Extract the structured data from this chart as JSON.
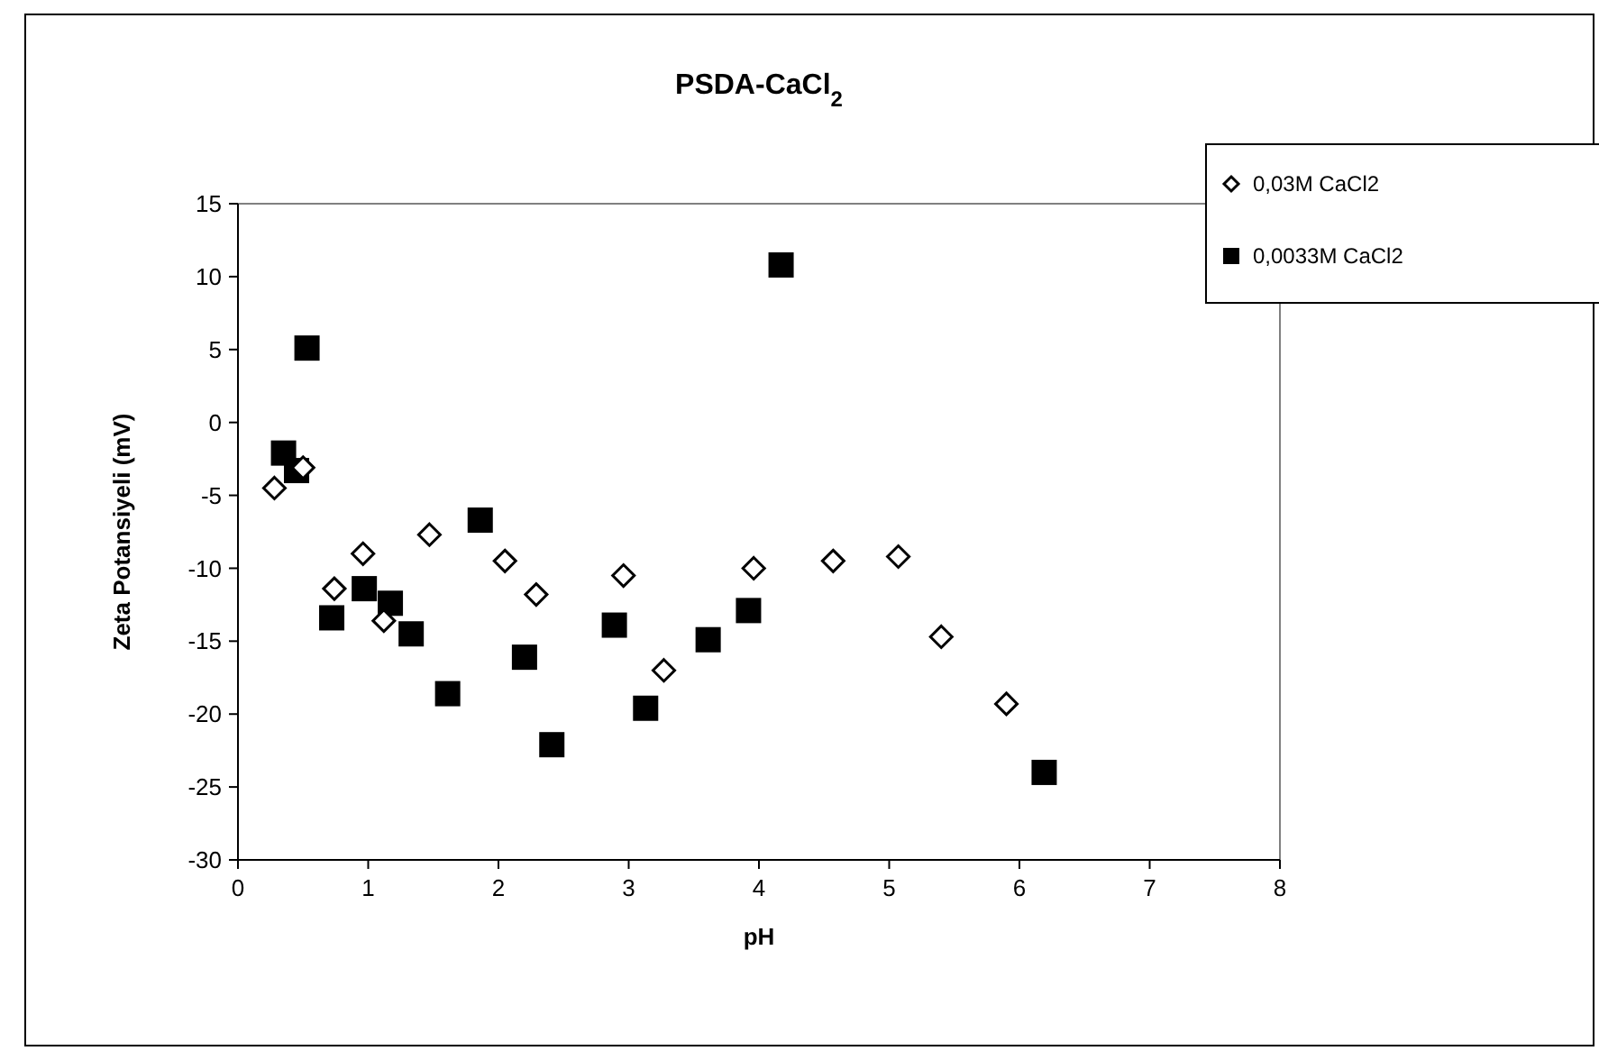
{
  "chart_data": {
    "type": "scatter",
    "title": "PSDA-CaCl$_{2}$",
    "xlabel": "pH",
    "ylabel": "Zeta Potansiyeli (mV)",
    "xlim": [
      0,
      8
    ],
    "xticks": [
      0,
      1,
      2,
      3,
      4,
      5,
      6,
      7,
      8
    ],
    "ylim": [
      -30,
      15
    ],
    "yticks": [
      -30,
      -25,
      -20,
      -15,
      -10,
      -5,
      0,
      5,
      10,
      15
    ],
    "grid": false,
    "legend": "top right",
    "series": [
      {
        "name": "0,03M CaCl2",
        "color": "#000000",
        "marker": "diamond",
        "x": [
          0.28,
          0.5,
          0.74,
          0.96,
          1.12,
          1.47,
          2.05,
          2.29,
          2.96,
          3.27,
          3.96,
          4.57,
          5.07,
          5.4,
          5.9
        ],
        "values": [
          -4.5,
          -3.1,
          -11.4,
          -9.0,
          -13.6,
          -7.7,
          -9.5,
          -11.8,
          -10.5,
          -17.0,
          -10.0,
          -9.5,
          -9.2,
          -14.7,
          -19.3
        ]
      },
      {
        "name": "0,0033M CaCl2",
        "color": "#000000",
        "marker": "square",
        "x": [
          0.35,
          0.45,
          0.53,
          0.72,
          0.97,
          1.17,
          1.33,
          1.61,
          1.86,
          2.2,
          2.41,
          2.89,
          3.13,
          3.61,
          3.92,
          4.17,
          6.19
        ],
        "values": [
          -2.1,
          -3.3,
          5.1,
          -13.4,
          -11.4,
          -12.4,
          -14.5,
          -18.6,
          -6.7,
          -16.1,
          -22.1,
          -13.9,
          -19.6,
          -14.9,
          -12.9,
          10.8,
          -24.0
        ]
      }
    ]
  }
}
